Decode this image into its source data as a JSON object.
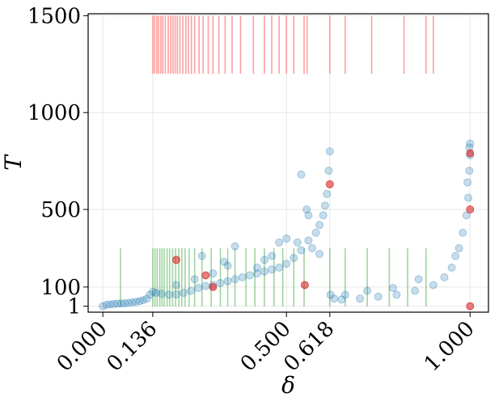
{
  "chart_data": {
    "type": "scatter",
    "xlabel": "δ",
    "ylabel": "T",
    "xlim": [
      -0.04,
      1.05
    ],
    "ylim": [
      -30,
      1510
    ],
    "x_ticks": [
      {
        "value": 0.0,
        "label": "0.000"
      },
      {
        "value": 0.136,
        "label": "0.136"
      },
      {
        "value": 0.5,
        "label": "0.500"
      },
      {
        "value": 0.618,
        "label": "0.618"
      },
      {
        "value": 1.0,
        "label": "1.000"
      }
    ],
    "y_ticks": [
      {
        "value": 1,
        "label": "1"
      },
      {
        "value": 100,
        "label": "100"
      },
      {
        "value": 500,
        "label": "500"
      },
      {
        "value": 1000,
        "label": "1000"
      },
      {
        "value": 1500,
        "label": "1500"
      }
    ],
    "grid": true,
    "colors": {
      "scatter": "#1f77b4",
      "highlight": "#d62728",
      "red_lines": "#ff7f7f",
      "green_lines": "#2ca02c"
    },
    "red_rug": {
      "y_range": [
        1200,
        1500
      ],
      "x": [
        0.136,
        0.141,
        0.147,
        0.152,
        0.158,
        0.163,
        0.17,
        0.178,
        0.185,
        0.191,
        0.197,
        0.203,
        0.21,
        0.218,
        0.226,
        0.233,
        0.241,
        0.25,
        0.262,
        0.273,
        0.287,
        0.3,
        0.316,
        0.333,
        0.352,
        0.375,
        0.41,
        0.44,
        0.46,
        0.48,
        0.5,
        0.52,
        0.548,
        0.556,
        0.618,
        0.66,
        0.732,
        0.82,
        0.88,
        0.9
      ]
    },
    "green_rug": {
      "y_range": [
        0,
        300
      ],
      "x": [
        0.048,
        0.136,
        0.142,
        0.148,
        0.155,
        0.161,
        0.167,
        0.175,
        0.182,
        0.19,
        0.198,
        0.207,
        0.215,
        0.224,
        0.235,
        0.25,
        0.27,
        0.295,
        0.32,
        0.34,
        0.36,
        0.39,
        0.414,
        0.44,
        0.466,
        0.49,
        0.52,
        0.548,
        0.618,
        0.66,
        0.72,
        0.78,
        0.83,
        0.88
      ]
    },
    "series": [
      {
        "name": "",
        "points": [
          [
            0.0,
            1
          ],
          [
            0.01,
            8
          ],
          [
            0.02,
            10
          ],
          [
            0.03,
            12
          ],
          [
            0.04,
            14
          ],
          [
            0.05,
            15
          ],
          [
            0.06,
            16
          ],
          [
            0.07,
            18
          ],
          [
            0.08,
            20
          ],
          [
            0.09,
            23
          ],
          [
            0.1,
            27
          ],
          [
            0.11,
            32
          ],
          [
            0.12,
            40
          ],
          [
            0.128,
            60
          ],
          [
            0.136,
            75
          ],
          [
            0.145,
            70
          ],
          [
            0.16,
            65
          ],
          [
            0.18,
            60
          ],
          [
            0.2,
            62
          ],
          [
            0.22,
            70
          ],
          [
            0.24,
            80
          ],
          [
            0.26,
            95
          ],
          [
            0.28,
            105
          ],
          [
            0.3,
            110
          ],
          [
            0.32,
            120
          ],
          [
            0.34,
            130
          ],
          [
            0.36,
            140
          ],
          [
            0.38,
            150
          ],
          [
            0.4,
            160
          ],
          [
            0.42,
            170
          ],
          [
            0.44,
            180
          ],
          [
            0.46,
            190
          ],
          [
            0.48,
            200
          ],
          [
            0.5,
            220
          ],
          [
            0.52,
            250
          ],
          [
            0.54,
            290
          ],
          [
            0.56,
            340
          ],
          [
            0.58,
            380
          ],
          [
            0.59,
            420
          ],
          [
            0.6,
            470
          ],
          [
            0.605,
            520
          ],
          [
            0.61,
            580
          ],
          [
            0.615,
            700
          ],
          [
            0.618,
            800
          ],
          [
            0.62,
            60
          ],
          [
            0.63,
            40
          ],
          [
            0.65,
            35
          ],
          [
            0.7,
            40
          ],
          [
            0.75,
            50
          ],
          [
            0.8,
            60
          ],
          [
            0.85,
            80
          ],
          [
            0.9,
            110
          ],
          [
            0.93,
            150
          ],
          [
            0.95,
            200
          ],
          [
            0.97,
            300
          ],
          [
            0.98,
            380
          ],
          [
            0.99,
            470
          ],
          [
            0.995,
            560
          ],
          [
            0.998,
            700
          ],
          [
            1.0,
            840
          ],
          [
            0.27,
            260
          ],
          [
            0.33,
            230
          ],
          [
            0.36,
            310
          ],
          [
            0.44,
            240
          ],
          [
            0.48,
            330
          ],
          [
            0.5,
            350
          ],
          [
            0.53,
            330
          ],
          [
            0.54,
            680
          ],
          [
            0.555,
            500
          ],
          [
            0.56,
            470
          ],
          [
            0.57,
            300
          ],
          [
            0.59,
            270
          ],
          [
            0.3,
            170
          ],
          [
            0.34,
            210
          ],
          [
            0.25,
            140
          ],
          [
            0.42,
            200
          ],
          [
            0.46,
            260
          ],
          [
            0.72,
            80
          ],
          [
            0.79,
            95
          ],
          [
            0.86,
            140
          ],
          [
            0.96,
            260
          ],
          [
            0.998,
            820
          ],
          [
            1.0,
            780
          ],
          [
            0.993,
            640
          ],
          [
            0.66,
            60
          ],
          [
            0.2,
            110
          ]
        ]
      },
      {
        "name": "",
        "points": [
          [
            0.2,
            240
          ],
          [
            0.28,
            160
          ],
          [
            0.3,
            100
          ],
          [
            0.55,
            110
          ],
          [
            0.618,
            630
          ],
          [
            1.0,
            500
          ],
          [
            1.0,
            790
          ],
          [
            1.0,
            1
          ]
        ]
      }
    ]
  }
}
